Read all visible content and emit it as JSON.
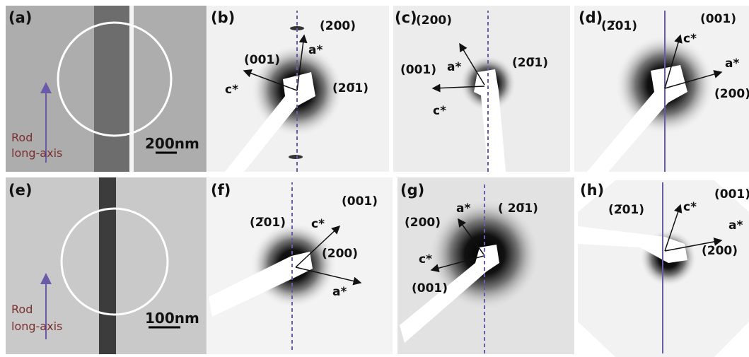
{
  "panels": [
    {
      "label": "(a)",
      "texts": [
        "Rod",
        "long-axis",
        "200nm"
      ]
    },
    {
      "label": "(b)",
      "texts": [
        "(001)",
        "(200)",
        "a*",
        "c*",
        "(20̅1)"
      ]
    },
    {
      "label": "(c)",
      "texts": [
        "(200)",
        "a*",
        "(20̅1)",
        "(001)",
        "c*"
      ]
    },
    {
      "label": "(d)",
      "texts": [
        "(2̅01)",
        "(001)",
        "c*",
        "a*",
        "(200)"
      ]
    },
    {
      "label": "(e)",
      "texts": [
        "Rod",
        "long-axis",
        "100nm"
      ]
    },
    {
      "label": "(f)",
      "texts": [
        "(2̅01)",
        "c*",
        "(001)",
        "(200)",
        "a*"
      ]
    },
    {
      "label": "(g)",
      "texts": [
        "a*",
        "( 20̅1)",
        "(200)",
        "c*",
        "(001)"
      ]
    },
    {
      "label": "(h)",
      "texts": [
        "(2̅01)",
        "(001)",
        "c*",
        "a*",
        "(200)"
      ]
    }
  ]
}
